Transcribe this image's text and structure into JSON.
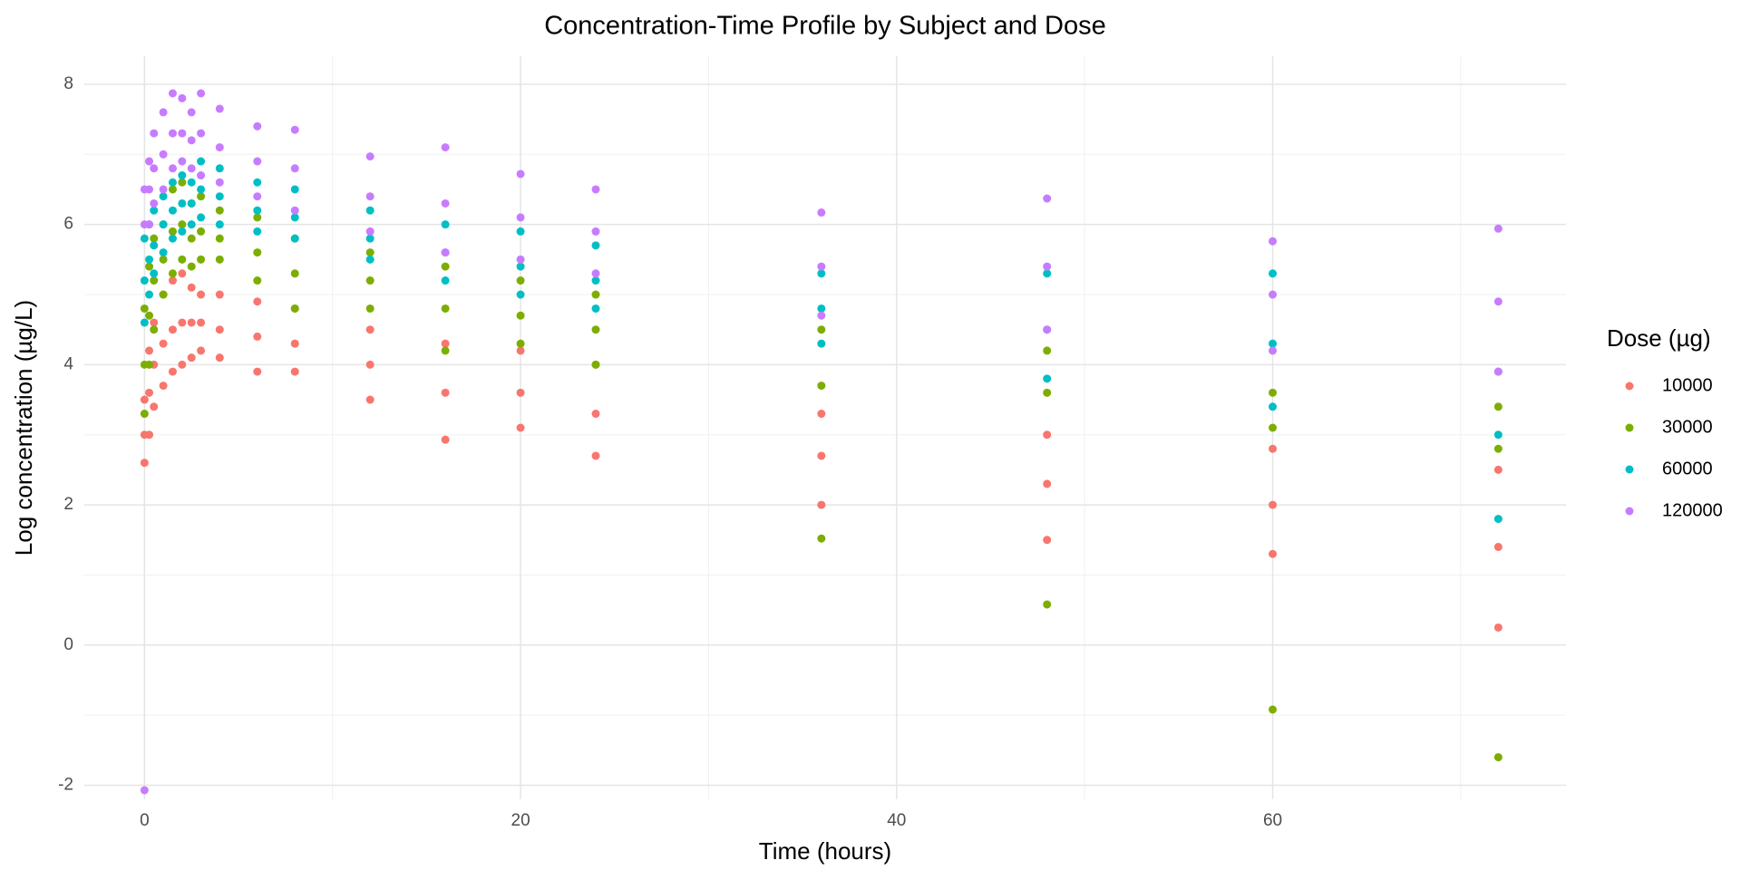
{
  "chart_data": {
    "type": "scatter",
    "title": "Concentration-Time Profile by Subject and Dose",
    "x_label": "Time (hours)",
    "y_label": "Log concentration (µg/L)",
    "legend_title": "Dose (µg)",
    "legend_position": "right",
    "grid": true,
    "xlim": [
      -3.2,
      75.6
    ],
    "xticks": [
      0,
      20,
      40,
      60
    ],
    "ylim": [
      -2.2,
      8.4
    ],
    "yticks": [
      -2,
      0,
      2,
      4,
      6,
      8
    ],
    "series": [
      {
        "name": "10000",
        "color": "#F8766D",
        "x": [
          0,
          0,
          0,
          0.25,
          0.25,
          0.25,
          0.5,
          0.5,
          0.5,
          1,
          1,
          1,
          1.5,
          1.5,
          1.5,
          2,
          2,
          2,
          2.5,
          2.5,
          2.5,
          3,
          3,
          3,
          4,
          4,
          4,
          6,
          6,
          6,
          8,
          8,
          8,
          12,
          12,
          12,
          16,
          16,
          16,
          20,
          20,
          20,
          24,
          24,
          24,
          36,
          36,
          36,
          48,
          48,
          48,
          60,
          60,
          60,
          72,
          72,
          72
        ],
        "values": [
          2.6,
          3.0,
          3.5,
          3.0,
          3.6,
          4.2,
          3.4,
          4.0,
          4.6,
          3.7,
          4.3,
          5.0,
          3.9,
          4.5,
          5.2,
          4.0,
          4.6,
          5.3,
          4.1,
          4.6,
          5.1,
          4.2,
          4.6,
          5.0,
          4.1,
          4.5,
          5.0,
          3.9,
          4.4,
          4.9,
          3.9,
          4.3,
          4.8,
          3.5,
          4.0,
          4.5,
          2.93,
          3.6,
          4.3,
          3.1,
          3.6,
          4.2,
          2.7,
          3.3,
          4.0,
          2.0,
          2.7,
          3.3,
          1.5,
          2.3,
          3.0,
          1.3,
          2.0,
          2.8,
          0.25,
          1.4,
          2.5
        ]
      },
      {
        "name": "30000",
        "color": "#7CAE00",
        "x": [
          0,
          0,
          0,
          0.25,
          0.25,
          0.25,
          0.5,
          0.5,
          0.5,
          1,
          1,
          1,
          1.5,
          1.5,
          1.5,
          2,
          2,
          2,
          2.5,
          2.5,
          2.5,
          3,
          3,
          3,
          4,
          4,
          4,
          6,
          6,
          6,
          8,
          8,
          8,
          12,
          12,
          12,
          16,
          16,
          16,
          20,
          20,
          20,
          24,
          24,
          24,
          36,
          36,
          36,
          48,
          48,
          48,
          60,
          60,
          60,
          72,
          72,
          72
        ],
        "values": [
          3.3,
          4.0,
          4.8,
          4.0,
          4.7,
          5.4,
          4.5,
          5.2,
          5.8,
          5.0,
          5.5,
          6.0,
          5.3,
          5.9,
          6.5,
          5.5,
          6.0,
          6.6,
          5.4,
          5.8,
          6.3,
          5.5,
          5.9,
          6.4,
          5.5,
          5.8,
          6.2,
          5.2,
          5.6,
          6.1,
          4.8,
          5.3,
          5.8,
          4.8,
          5.2,
          5.6,
          4.2,
          4.8,
          5.4,
          4.3,
          4.7,
          5.2,
          4.0,
          4.5,
          5.0,
          1.52,
          3.7,
          4.5,
          0.58,
          3.6,
          4.2,
          -0.92,
          3.1,
          3.6,
          -1.6,
          2.8,
          3.4
        ]
      },
      {
        "name": "60000",
        "color": "#00BFC4",
        "x": [
          0,
          0,
          0,
          0.25,
          0.25,
          0.25,
          0.5,
          0.5,
          0.5,
          1,
          1,
          1,
          1.5,
          1.5,
          1.5,
          2,
          2,
          2,
          2.5,
          2.5,
          2.5,
          3,
          3,
          3,
          4,
          4,
          4,
          6,
          6,
          6,
          8,
          8,
          8,
          12,
          12,
          12,
          16,
          16,
          16,
          20,
          20,
          20,
          24,
          24,
          24,
          36,
          36,
          36,
          48,
          48,
          48,
          60,
          60,
          60,
          72,
          72,
          72
        ],
        "values": [
          4.6,
          5.2,
          5.8,
          5.0,
          5.5,
          6.0,
          5.3,
          5.7,
          6.2,
          5.6,
          6.0,
          6.4,
          5.8,
          6.2,
          6.6,
          5.9,
          6.3,
          6.7,
          6.0,
          6.3,
          6.6,
          6.1,
          6.5,
          6.9,
          6.0,
          6.4,
          6.8,
          5.9,
          6.2,
          6.6,
          5.8,
          6.1,
          6.5,
          5.5,
          5.8,
          6.2,
          5.2,
          5.6,
          6.0,
          5.0,
          5.4,
          5.9,
          4.8,
          5.2,
          5.7,
          4.3,
          4.8,
          5.3,
          3.8,
          4.5,
          5.3,
          3.4,
          4.3,
          5.3,
          1.8,
          3.0,
          3.9
        ]
      },
      {
        "name": "120000",
        "color": "#C77CFF",
        "x": [
          0,
          0,
          0,
          0.25,
          0.25,
          0.25,
          0.5,
          0.5,
          0.5,
          1,
          1,
          1,
          1.5,
          1.5,
          1.5,
          2,
          2,
          2,
          2.5,
          2.5,
          2.5,
          3,
          3,
          3,
          4,
          4,
          4,
          6,
          6,
          6,
          8,
          8,
          8,
          12,
          12,
          12,
          16,
          16,
          16,
          20,
          20,
          20,
          24,
          24,
          24,
          36,
          36,
          36,
          48,
          48,
          48,
          60,
          60,
          60,
          72,
          72,
          72
        ],
        "values": [
          -2.07,
          6.0,
          6.5,
          6.0,
          6.5,
          6.9,
          6.3,
          6.8,
          7.3,
          6.5,
          7.0,
          7.6,
          6.8,
          7.3,
          7.87,
          6.9,
          7.3,
          7.8,
          6.8,
          7.2,
          7.6,
          6.7,
          7.3,
          7.87,
          6.6,
          7.1,
          7.65,
          6.4,
          6.9,
          7.4,
          6.2,
          6.8,
          7.35,
          5.9,
          6.4,
          6.97,
          5.6,
          6.3,
          7.1,
          5.5,
          6.1,
          6.72,
          5.3,
          5.9,
          6.5,
          4.7,
          5.4,
          6.17,
          4.5,
          5.4,
          6.37,
          4.2,
          5.0,
          5.76,
          3.9,
          4.9,
          5.94
        ]
      }
    ]
  }
}
